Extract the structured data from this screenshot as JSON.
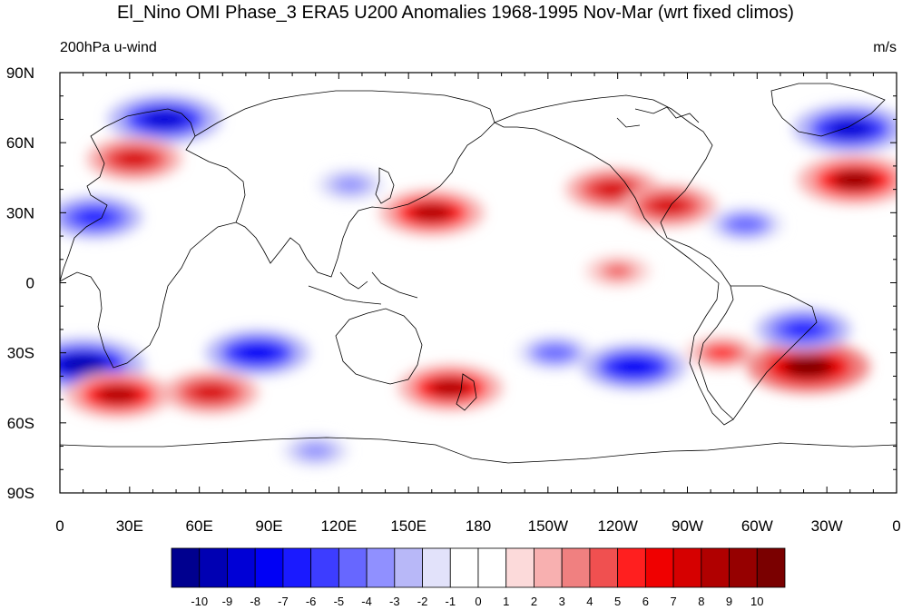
{
  "title": "El_Nino OMI Phase_3 ERA5 U200 Anomalies 1968-1995 Nov-Mar (wrt fixed climos)",
  "left_subtitle": "200hPa u-wind",
  "right_subtitle": "m/s",
  "lat_labels": [
    "90N",
    "60N",
    "30N",
    "0",
    "30S",
    "60S",
    "90S"
  ],
  "lon_labels": [
    "0",
    "30E",
    "60E",
    "90E",
    "120E",
    "150E",
    "180",
    "150W",
    "120W",
    "90W",
    "60W",
    "30W",
    "0"
  ],
  "colorbar": {
    "labels": [
      "-10",
      "-9",
      "-8",
      "-7",
      "-6",
      "-5",
      "-4",
      "-3",
      "-2",
      "-1",
      "0",
      "1",
      "2",
      "3",
      "4",
      "5",
      "6",
      "7",
      "8",
      "9",
      "10"
    ],
    "colors": [
      "#00008f",
      "#0000b3",
      "#0000d6",
      "#0000f5",
      "#1a1aff",
      "#3d3dff",
      "#6767ff",
      "#9090ff",
      "#b8b8f8",
      "#e2e2fa",
      "#ffffff",
      "#ffffff",
      "#fcdada",
      "#f8b0b0",
      "#f08080",
      "#f05050",
      "#ff1f1f",
      "#f00000",
      "#d60000",
      "#b00000",
      "#960000",
      "#7a0000"
    ]
  },
  "colors": {
    "neg_strong": "#1a1aff",
    "neg_mid": "#6767ff",
    "neg_weak": "#b8b8f8",
    "pos_weak": "#fcdada",
    "pos_mid": "#f08080",
    "pos_strong": "#ff1f1f",
    "pos_max": "#b00000"
  },
  "chart_data": {
    "type": "heatmap",
    "variable": "200hPa u-wind anomaly",
    "units": "m/s",
    "lon_range": [
      0,
      360
    ],
    "lat_range": [
      -90,
      90
    ],
    "levels": [
      -10,
      -9,
      -8,
      -7,
      -6,
      -5,
      -4,
      -3,
      -2,
      -1,
      0,
      1,
      2,
      3,
      4,
      5,
      6,
      7,
      8,
      9,
      10
    ],
    "anomaly_centers": [
      {
        "lon": 45,
        "lat": 70,
        "value": -9
      },
      {
        "lon": 32,
        "lat": 53,
        "value": 7
      },
      {
        "lon": 15,
        "lat": 28,
        "value": -7
      },
      {
        "lon": 160,
        "lat": 30,
        "value": 8
      },
      {
        "lon": 238,
        "lat": 40,
        "value": 7
      },
      {
        "lon": 262,
        "lat": 33,
        "value": 7
      },
      {
        "lon": 342,
        "lat": 44,
        "value": 9
      },
      {
        "lon": 340,
        "lat": 66,
        "value": -9
      },
      {
        "lon": 125,
        "lat": 42,
        "value": -4
      },
      {
        "lon": 295,
        "lat": 25,
        "value": -5
      },
      {
        "lon": 240,
        "lat": 5,
        "value": 4
      },
      {
        "lon": 10,
        "lat": -35,
        "value": -10
      },
      {
        "lon": 25,
        "lat": -48,
        "value": 8
      },
      {
        "lon": 65,
        "lat": -47,
        "value": 7
      },
      {
        "lon": 85,
        "lat": -30,
        "value": -8
      },
      {
        "lon": 168,
        "lat": -45,
        "value": 8
      },
      {
        "lon": 213,
        "lat": -30,
        "value": -5
      },
      {
        "lon": 247,
        "lat": -36,
        "value": -8
      },
      {
        "lon": 285,
        "lat": -30,
        "value": 5
      },
      {
        "lon": 322,
        "lat": -36,
        "value": 10
      },
      {
        "lon": 320,
        "lat": -20,
        "value": -7
      },
      {
        "lon": 110,
        "lat": -72,
        "value": -4
      }
    ]
  }
}
